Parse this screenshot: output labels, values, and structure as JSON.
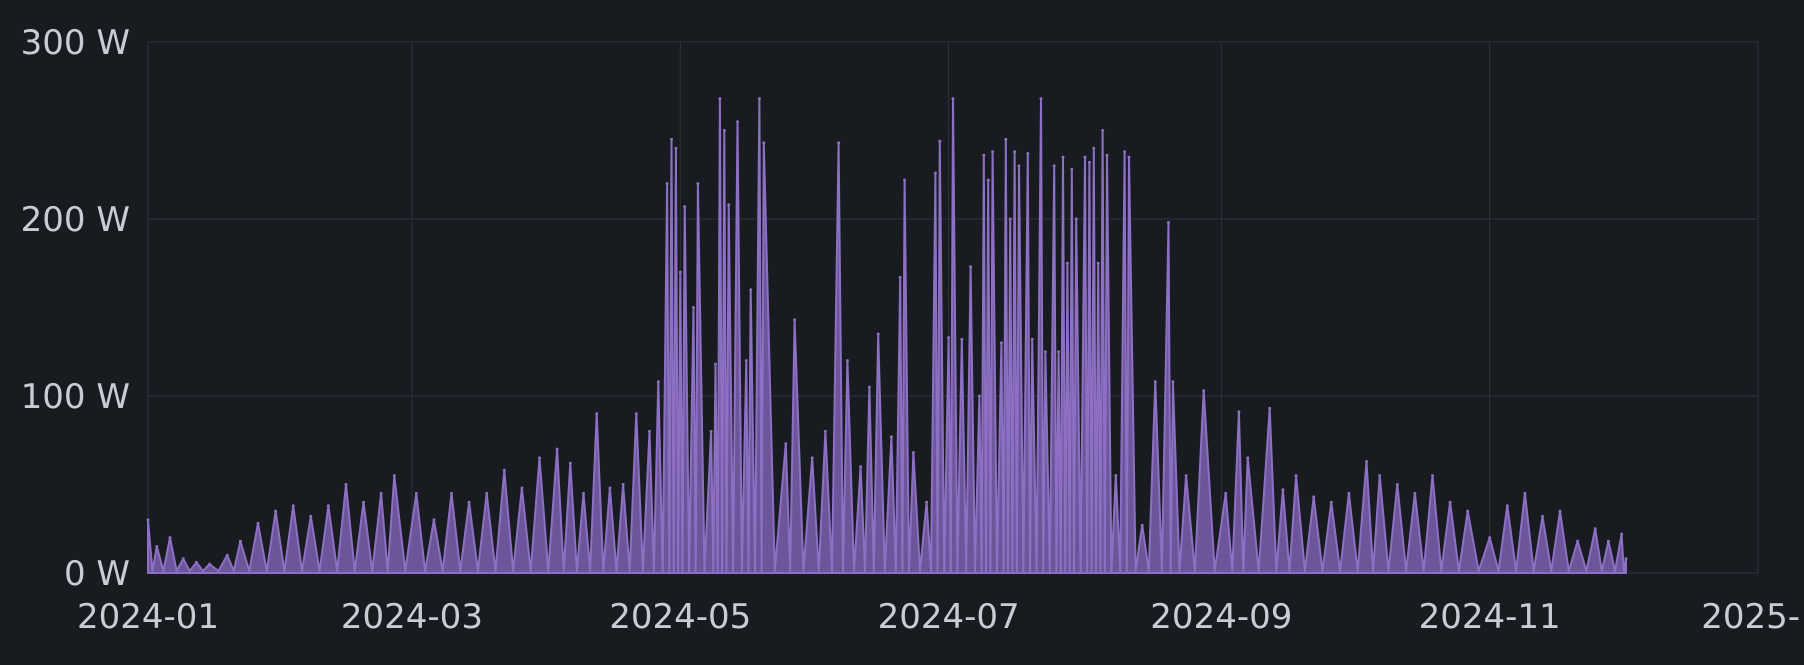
{
  "chart_data": {
    "type": "area",
    "title": "",
    "xlabel": "",
    "ylabel": "",
    "grid": true,
    "legend": "none",
    "colors": {
      "background": "#181b20",
      "grid": "#2f333a",
      "text": "#c8ccd4",
      "series": "#7b5fae",
      "series_stroke": "#8d70c4"
    },
    "y_ticks": [
      {
        "value": 0,
        "label": "0 W"
      },
      {
        "value": 100,
        "label": "100 W"
      },
      {
        "value": 200,
        "label": "200 W"
      },
      {
        "value": 300,
        "label": "300 W"
      }
    ],
    "x_ticks": [
      {
        "value": "2024-01-01",
        "label": "2024-01"
      },
      {
        "value": "2024-03-01",
        "label": "2024-03"
      },
      {
        "value": "2024-05-01",
        "label": "2024-05"
      },
      {
        "value": "2024-07-01",
        "label": "2024-07"
      },
      {
        "value": "2024-09-01",
        "label": "2024-09"
      },
      {
        "value": "2024-11-01",
        "label": "2024-11"
      },
      {
        "value": "2025-01-01",
        "label": "2025-"
      }
    ],
    "xlim": [
      "2024-01-01",
      "2025-01-01"
    ],
    "ylim": [
      0,
      300
    ],
    "series": [
      {
        "values": [
          [
            "2024-01-01",
            30
          ],
          [
            "2024-01-03",
            15
          ],
          [
            "2024-01-06",
            20
          ],
          [
            "2024-01-09",
            8
          ],
          [
            "2024-01-12",
            6
          ],
          [
            "2024-01-15",
            5
          ],
          [
            "2024-01-19",
            10
          ],
          [
            "2024-01-22",
            18
          ],
          [
            "2024-01-26",
            28
          ],
          [
            "2024-01-30",
            35
          ],
          [
            "2024-02-03",
            38
          ],
          [
            "2024-02-07",
            32
          ],
          [
            "2024-02-11",
            38
          ],
          [
            "2024-02-15",
            50
          ],
          [
            "2024-02-19",
            40
          ],
          [
            "2024-02-23",
            45
          ],
          [
            "2024-02-26",
            55
          ],
          [
            "2024-03-02",
            45
          ],
          [
            "2024-03-06",
            30
          ],
          [
            "2024-03-10",
            45
          ],
          [
            "2024-03-14",
            40
          ],
          [
            "2024-03-18",
            45
          ],
          [
            "2024-03-22",
            58
          ],
          [
            "2024-03-26",
            48
          ],
          [
            "2024-03-30",
            65
          ],
          [
            "2024-04-03",
            70
          ],
          [
            "2024-04-06",
            62
          ],
          [
            "2024-04-09",
            45
          ],
          [
            "2024-04-12",
            90
          ],
          [
            "2024-04-15",
            48
          ],
          [
            "2024-04-18",
            50
          ],
          [
            "2024-04-21",
            90
          ],
          [
            "2024-04-24",
            80
          ],
          [
            "2024-04-26",
            108
          ],
          [
            "2024-04-28",
            220
          ],
          [
            "2024-04-29",
            245
          ],
          [
            "2024-04-30",
            240
          ],
          [
            "2024-05-01",
            170
          ],
          [
            "2024-05-02",
            207
          ],
          [
            "2024-05-04",
            150
          ],
          [
            "2024-05-05",
            220
          ],
          [
            "2024-05-08",
            80
          ],
          [
            "2024-05-09",
            118
          ],
          [
            "2024-05-10",
            268
          ],
          [
            "2024-05-11",
            250
          ],
          [
            "2024-05-12",
            208
          ],
          [
            "2024-05-14",
            255
          ],
          [
            "2024-05-16",
            120
          ],
          [
            "2024-05-17",
            160
          ],
          [
            "2024-05-19",
            268
          ],
          [
            "2024-05-20",
            243
          ],
          [
            "2024-05-25",
            73
          ],
          [
            "2024-05-27",
            143
          ],
          [
            "2024-05-31",
            65
          ],
          [
            "2024-06-03",
            80
          ],
          [
            "2024-06-06",
            243
          ],
          [
            "2024-06-08",
            120
          ],
          [
            "2024-06-11",
            60
          ],
          [
            "2024-06-13",
            105
          ],
          [
            "2024-06-15",
            135
          ],
          [
            "2024-06-18",
            77
          ],
          [
            "2024-06-20",
            167
          ],
          [
            "2024-06-21",
            222
          ],
          [
            "2024-06-23",
            68
          ],
          [
            "2024-06-26",
            40
          ],
          [
            "2024-06-28",
            226
          ],
          [
            "2024-06-29",
            244
          ],
          [
            "2024-07-01",
            133
          ],
          [
            "2024-07-02",
            268
          ],
          [
            "2024-07-04",
            132
          ],
          [
            "2024-07-06",
            173
          ],
          [
            "2024-07-08",
            100
          ],
          [
            "2024-07-09",
            236
          ],
          [
            "2024-07-10",
            222
          ],
          [
            "2024-07-11",
            238
          ],
          [
            "2024-07-13",
            130
          ],
          [
            "2024-07-14",
            245
          ],
          [
            "2024-07-15",
            200
          ],
          [
            "2024-07-16",
            238
          ],
          [
            "2024-07-17",
            230
          ],
          [
            "2024-07-19",
            237
          ],
          [
            "2024-07-20",
            132
          ],
          [
            "2024-07-22",
            268
          ],
          [
            "2024-07-23",
            125
          ],
          [
            "2024-07-25",
            230
          ],
          [
            "2024-07-26",
            125
          ],
          [
            "2024-07-27",
            235
          ],
          [
            "2024-07-28",
            175
          ],
          [
            "2024-07-29",
            228
          ],
          [
            "2024-07-30",
            200
          ],
          [
            "2024-08-01",
            235
          ],
          [
            "2024-08-02",
            232
          ],
          [
            "2024-08-03",
            240
          ],
          [
            "2024-08-04",
            175
          ],
          [
            "2024-08-05",
            250
          ],
          [
            "2024-08-06",
            236
          ],
          [
            "2024-08-08",
            55
          ],
          [
            "2024-08-10",
            238
          ],
          [
            "2024-08-11",
            235
          ],
          [
            "2024-08-14",
            27
          ],
          [
            "2024-08-17",
            108
          ],
          [
            "2024-08-20",
            198
          ],
          [
            "2024-08-21",
            108
          ],
          [
            "2024-08-24",
            55
          ],
          [
            "2024-08-28",
            103
          ],
          [
            "2024-09-02",
            45
          ],
          [
            "2024-09-05",
            91
          ],
          [
            "2024-09-07",
            65
          ],
          [
            "2024-09-12",
            93
          ],
          [
            "2024-09-15",
            47
          ],
          [
            "2024-09-18",
            55
          ],
          [
            "2024-09-22",
            43
          ],
          [
            "2024-09-26",
            40
          ],
          [
            "2024-09-30",
            45
          ],
          [
            "2024-10-04",
            63
          ],
          [
            "2024-10-07",
            55
          ],
          [
            "2024-10-11",
            50
          ],
          [
            "2024-10-15",
            45
          ],
          [
            "2024-10-19",
            55
          ],
          [
            "2024-10-23",
            40
          ],
          [
            "2024-10-27",
            35
          ],
          [
            "2024-11-01",
            20
          ],
          [
            "2024-11-05",
            38
          ],
          [
            "2024-11-09",
            45
          ],
          [
            "2024-11-13",
            32
          ],
          [
            "2024-11-17",
            35
          ],
          [
            "2024-11-21",
            18
          ],
          [
            "2024-11-25",
            25
          ],
          [
            "2024-11-28",
            18
          ],
          [
            "2024-12-01",
            22
          ],
          [
            "2024-12-02",
            8
          ]
        ]
      }
    ]
  }
}
